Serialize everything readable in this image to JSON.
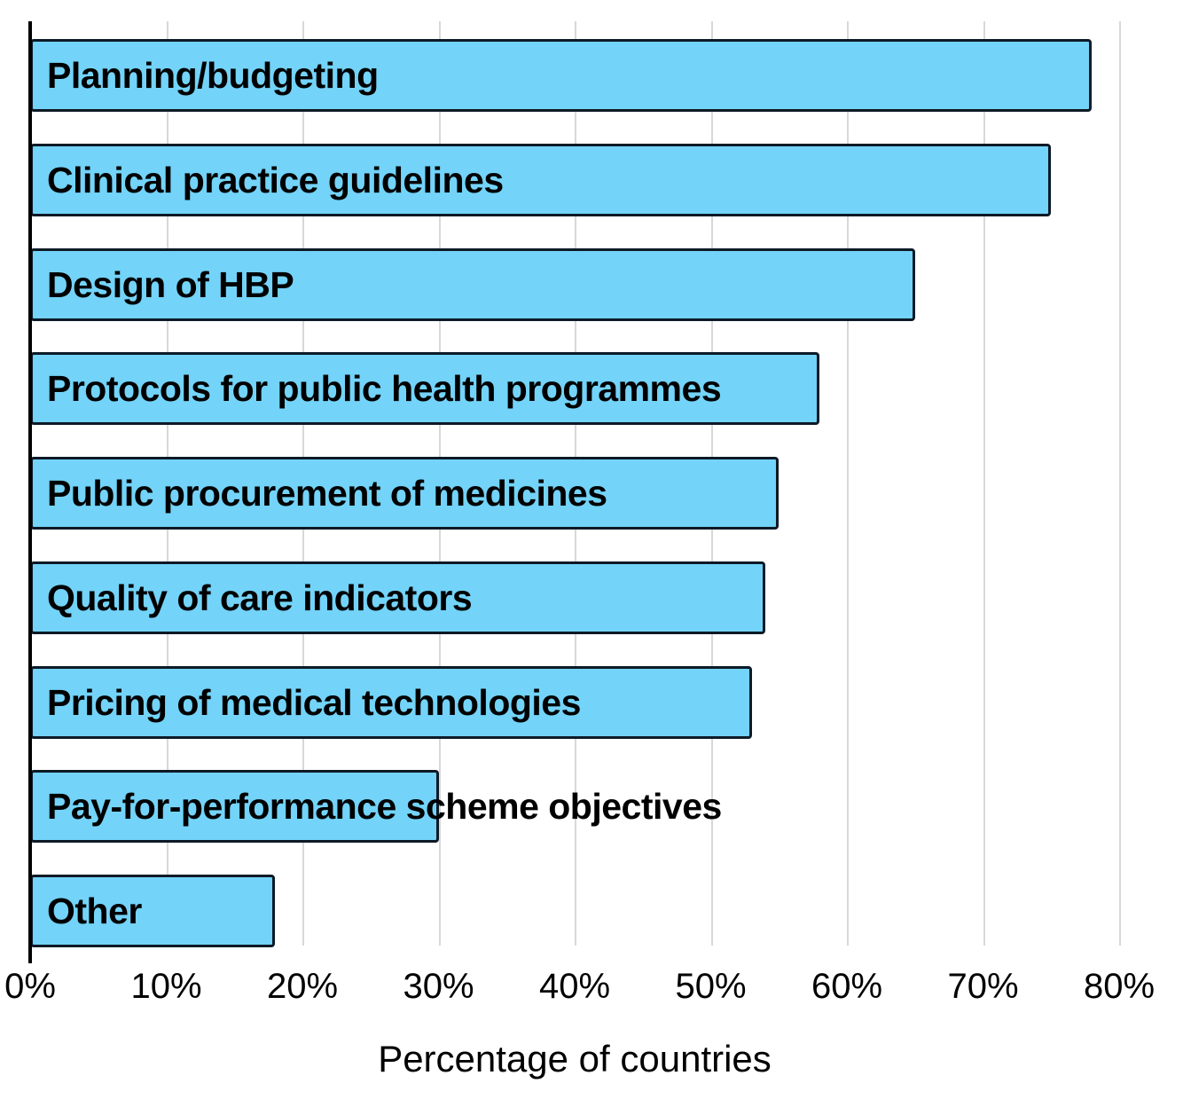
{
  "figure": {
    "background": "#ffffff"
  },
  "style": {
    "bar_fill": "#73d3f8",
    "bar_border": "#0d1a26",
    "gridline_color": "#d8d8d8",
    "axis_color": "#000000",
    "text_color": "#000000"
  },
  "chart_data": {
    "type": "bar",
    "orientation": "horizontal",
    "title": "",
    "xlabel": "Percentage of countries",
    "ylabel": "",
    "xlim": [
      0,
      80
    ],
    "grid": true,
    "legend_position": "none",
    "categories": [
      "Planning/budgeting",
      "Clinical practice guidelines",
      "Design of HBP",
      "Protocols for public health programmes",
      "Public procurement of medicines",
      "Quality of care indicators",
      "Pricing of medical technologies",
      "Pay-for-performance scheme objectives",
      "Other"
    ],
    "values": [
      78,
      75,
      65,
      58,
      55,
      54,
      53,
      30,
      18
    ],
    "xtick_values": [
      0,
      10,
      20,
      30,
      40,
      50,
      60,
      70,
      80
    ],
    "xtick_labels": [
      "0%",
      "10%",
      "20%",
      "30%",
      "40%",
      "50%",
      "60%",
      "70%",
      "80%"
    ]
  }
}
